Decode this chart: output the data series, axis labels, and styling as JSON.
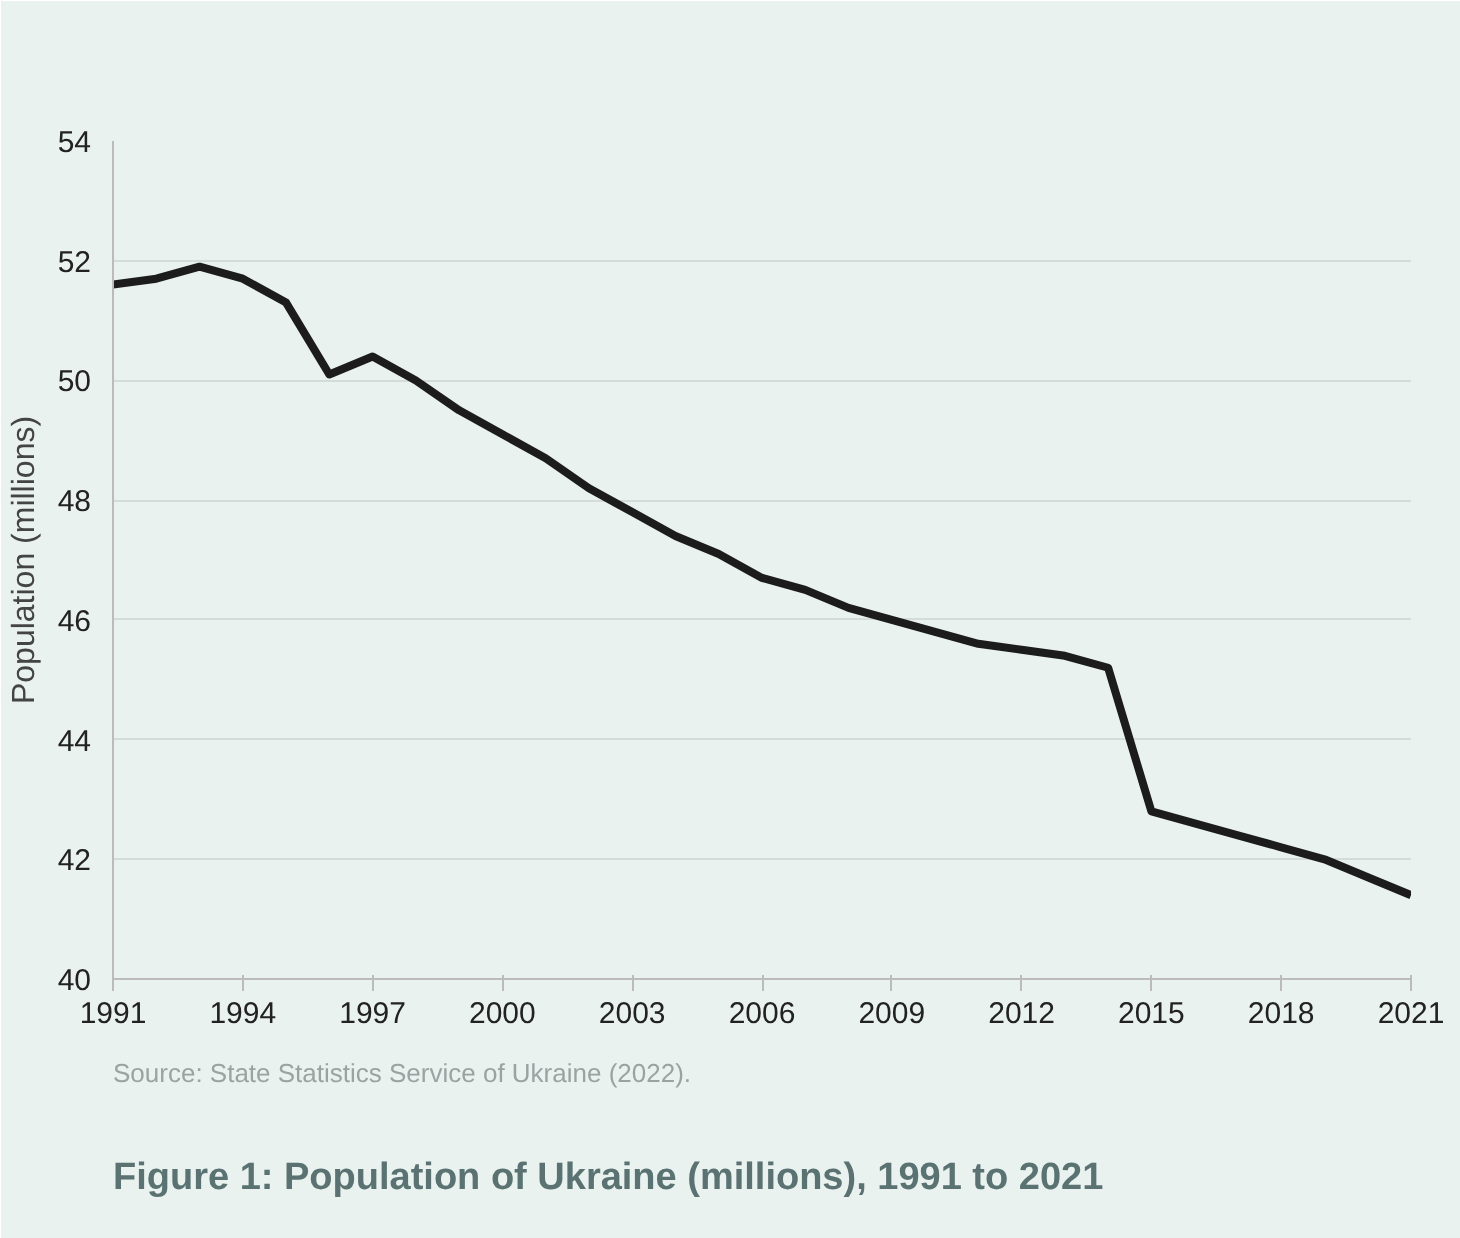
{
  "chart_data": {
    "type": "line",
    "title": "Figure 1: Population of Ukraine (millions), 1991 to 2021",
    "ylabel": "Population (millions)",
    "x": [
      1991,
      1992,
      1993,
      1994,
      1995,
      1996,
      1997,
      1998,
      1999,
      2000,
      2001,
      2002,
      2003,
      2004,
      2005,
      2006,
      2007,
      2008,
      2009,
      2010,
      2011,
      2012,
      2013,
      2014,
      2015,
      2016,
      2017,
      2018,
      2019,
      2020,
      2021
    ],
    "series": [
      {
        "color": "#1c1c1c",
        "values": [
          51.6,
          51.7,
          51.9,
          51.7,
          51.3,
          50.1,
          50.4,
          50.0,
          49.5,
          49.1,
          48.7,
          48.2,
          47.8,
          47.4,
          47.1,
          46.7,
          46.5,
          46.2,
          46.0,
          45.8,
          45.6,
          45.5,
          45.4,
          45.2,
          42.8,
          42.6,
          42.4,
          42.2,
          42.0,
          41.7,
          41.4
        ]
      }
    ],
    "xlim": [
      1991,
      2021
    ],
    "xticks": [
      1991,
      1994,
      1997,
      2000,
      2003,
      2006,
      2009,
      2012,
      2015,
      2018,
      2021
    ],
    "ylim": [
      40,
      54
    ],
    "yticks": [
      40,
      42,
      44,
      46,
      48,
      50,
      52,
      54
    ],
    "grid": "y",
    "marker": "none",
    "line_style": "solid",
    "annotations": [
      "Source: State Statistics Service of Ukraine (2022)."
    ]
  }
}
